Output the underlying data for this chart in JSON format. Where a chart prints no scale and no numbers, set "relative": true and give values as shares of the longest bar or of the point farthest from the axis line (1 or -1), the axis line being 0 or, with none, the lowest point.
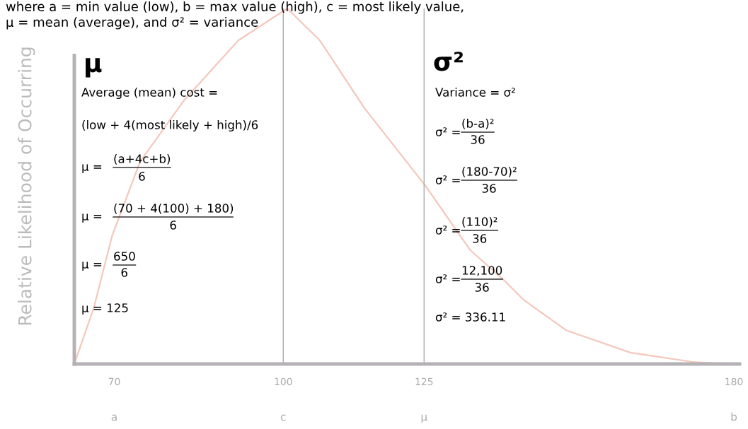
{
  "chart_data": {
    "type": "line",
    "relative": true,
    "title": "where a = min value (low), b = max value (high), c = most likely value,",
    "subtitle": "μ = mean (average), and σ² = variance",
    "ylabel": "Relative Likelihood of Occurring",
    "x": [
      62.9,
      66.4,
      69.6,
      74.6,
      82.3,
      92.0,
      100.7,
      106.5,
      114.4,
      125.3,
      133.2,
      138.9,
      142.7,
      150.2,
      161.6,
      173.0,
      180
    ],
    "series": [
      {
        "color": "#f4c8bc",
        "values": [
          0,
          0.16,
          0.36,
          0.57,
          0.74,
          0.91,
          1.0,
          0.91,
          0.72,
          0.5,
          0.32,
          0.24,
          0.18,
          0.095,
          0.032,
          0.005,
          0
        ]
      }
    ],
    "xlim": [
      62.9,
      181
    ],
    "xticks": [
      70,
      100,
      125,
      180
    ],
    "ref_lines": [
      {
        "axis": "x",
        "value": 100,
        "color": "#aaaaaa"
      },
      {
        "axis": "x",
        "value": 125,
        "color": "#aaaaaa"
      }
    ],
    "annotations": [
      "μ",
      "Average (mean) cost =",
      "(low + 4(most likely + high)/6",
      "μ =",
      "(a+4c+b)",
      "6",
      "μ =",
      "(70 + 4(100) + 180)",
      "6",
      "μ =",
      "650",
      "6",
      "μ = 125",
      "σ²",
      "Variance = σ²",
      "σ² =",
      "(b-a)²",
      "36",
      "σ² =",
      "(180-70)²",
      "36",
      "σ² =",
      "(110)²",
      "36",
      "σ² =",
      "12,100",
      "36",
      "σ² = 336.11",
      "a",
      "c",
      "μ",
      "b"
    ],
    "grid": false,
    "legend": false,
    "marker": "none",
    "line_style": "solid"
  }
}
